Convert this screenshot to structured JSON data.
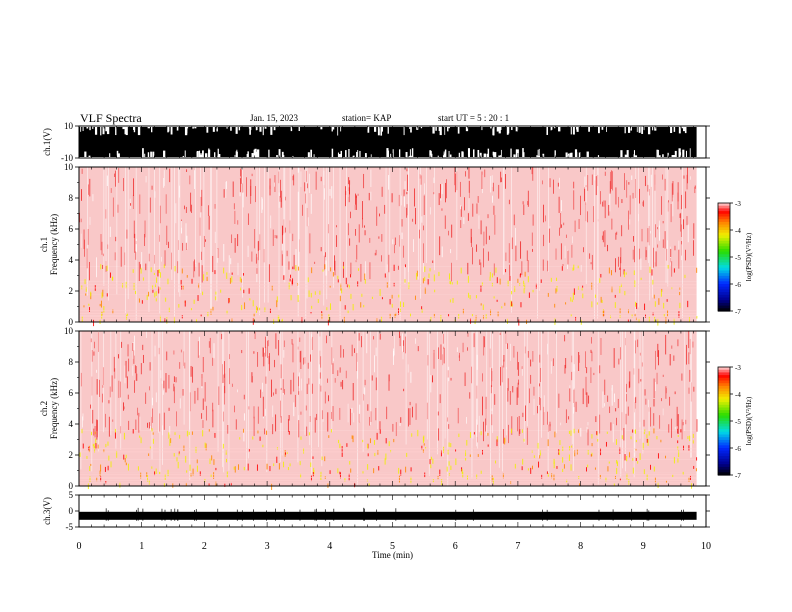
{
  "header": {
    "title": "VLF Spectra",
    "date": "Jan. 15, 2023",
    "station": "station= KAP",
    "start": "start  UT =   5 : 20 : 1"
  },
  "colors": {
    "background_noise": "#f01010",
    "band_red": "#ff0000",
    "band_yellow": "#f0f000",
    "band_green": "#40e000"
  },
  "chart_data": [
    {
      "type": "line",
      "name": "ch1-waveform",
      "ylabel": "ch.1(V)",
      "ylim": [
        -10,
        10
      ],
      "yticks": [
        "10",
        "-10"
      ],
      "xlim": [
        0,
        10
      ],
      "description_series": "saturated broadband noise filling the panel",
      "x_end": 9.85
    },
    {
      "type": "heatmap",
      "name": "ch1-spectrogram",
      "ylabel": "Frequency (kHz)",
      "channel_label": "ch.1",
      "xlim": [
        0,
        10
      ],
      "ylim": [
        0,
        10
      ],
      "yticks": [
        "0",
        "2",
        "4",
        "6",
        "8",
        "10"
      ],
      "x_end": 9.85,
      "bands": [
        {
          "from": 0.0,
          "to": 0.4,
          "level": -4.0
        },
        {
          "from": 0.4,
          "to": 1.0,
          "level": -3.6
        },
        {
          "from": 1.0,
          "to": 1.8,
          "level": -3.4
        },
        {
          "from": 1.8,
          "to": 2.6,
          "level": -3.7
        },
        {
          "from": 2.6,
          "to": 3.6,
          "level": -3.4
        },
        {
          "from": 3.6,
          "to": 10.0,
          "level": -3.0
        }
      ],
      "colorbar": {
        "label": "log(PSD)(V²/Hz)",
        "range": [
          -7,
          -3
        ],
        "ticks": [
          "-3",
          "-4",
          "-5",
          "-6",
          "-7"
        ]
      }
    },
    {
      "type": "heatmap",
      "name": "ch2-spectrogram",
      "ylabel": "Frequency (kHz)",
      "channel_label": "ch.2",
      "xlim": [
        0,
        10
      ],
      "ylim": [
        0,
        10
      ],
      "yticks": [
        "0",
        "2",
        "4",
        "6",
        "8",
        "10"
      ],
      "x_end": 9.85,
      "bands": [
        {
          "from": 0.0,
          "to": 0.5,
          "level": -3.8
        },
        {
          "from": 0.5,
          "to": 0.9,
          "level": -4.2
        },
        {
          "from": 0.9,
          "to": 1.7,
          "level": -4.6
        },
        {
          "from": 1.7,
          "to": 3.6,
          "level": -3.3
        },
        {
          "from": 3.6,
          "to": 10.0,
          "level": -3.0
        }
      ],
      "colorbar": {
        "label": "log(PSD)(V²/Hz)",
        "range": [
          -7,
          -3
        ],
        "ticks": [
          "-3",
          "-4",
          "-5",
          "-6",
          "-7"
        ]
      }
    },
    {
      "type": "line",
      "name": "ch3-waveform",
      "ylabel": "ch.3(V)",
      "ylim": [
        -5,
        5
      ],
      "yticks": [
        "5",
        "0",
        "-5"
      ],
      "xlim": [
        0,
        10
      ],
      "level": -1.5,
      "x_end": 9.85
    }
  ],
  "xaxis": {
    "label": "Time  (min)",
    "ticks": [
      "0",
      "1",
      "2",
      "3",
      "4",
      "5",
      "6",
      "7",
      "8",
      "9",
      "10"
    ]
  }
}
